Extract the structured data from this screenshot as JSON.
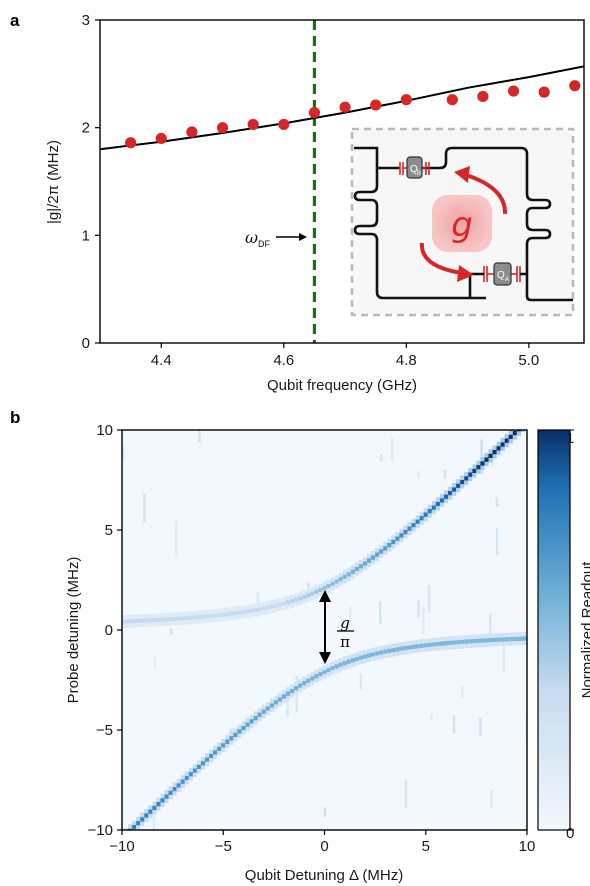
{
  "panel_a_label": "a",
  "panel_b_label": "b",
  "chart_data": [
    {
      "type": "scatter",
      "panel": "a",
      "xlabel": "Qubit frequency (GHz)",
      "ylabel": "|g|/2π (MHz)",
      "xlim": [
        4.3,
        5.09
      ],
      "ylim": [
        0,
        3
      ],
      "xticks": [
        4.4,
        4.6,
        4.8,
        5.0
      ],
      "xtick_labels": [
        "4.4",
        "4.6",
        "4.8",
        "5.0"
      ],
      "yticks": [
        0,
        1,
        2,
        3
      ],
      "ytick_labels": [
        "0",
        "1",
        "2",
        "3"
      ],
      "points_color": "#d62728",
      "fit_color": "#000000",
      "marker_line_color": "#1e6b1e",
      "series": [
        {
          "kind": "points",
          "x": [
            4.35,
            4.4,
            4.45,
            4.5,
            4.55,
            4.6,
            4.65,
            4.7,
            4.75,
            4.8,
            4.875,
            4.925,
            4.975,
            5.025,
            5.075
          ],
          "y": [
            1.86,
            1.9,
            1.96,
            2.0,
            2.03,
            2.03,
            2.14,
            2.19,
            2.21,
            2.26,
            2.26,
            2.29,
            2.34,
            2.33,
            2.39
          ]
        },
        {
          "kind": "line",
          "x": [
            4.3,
            4.4,
            4.5,
            4.6,
            4.7,
            4.8,
            4.9,
            5.0,
            5.09
          ],
          "y": [
            1.8,
            1.87,
            1.95,
            2.04,
            2.14,
            2.25,
            2.37,
            2.47,
            2.57
          ]
        }
      ],
      "vline": {
        "x": 4.65,
        "style": "dashed"
      },
      "annotation": {
        "text": "ω",
        "subscript": "DF"
      },
      "inset": {
        "center_label": "g",
        "qubit_label_top": "Q",
        "qubit_sub_top": "B",
        "qubit_label_bottom": "Q",
        "qubit_sub_bottom": "A"
      }
    },
    {
      "type": "heatmap",
      "panel": "b",
      "xlabel": "Qubit Detuning Δ (MHz)",
      "ylabel": "Probe detuning (MHz)",
      "xlim": [
        -10,
        10
      ],
      "ylim": [
        -10,
        10
      ],
      "xticks": [
        -10,
        -5,
        0,
        5,
        10
      ],
      "xtick_labels": [
        "−10",
        "−5",
        "0",
        "5",
        "10"
      ],
      "yticks": [
        -10,
        -5,
        0,
        5,
        10
      ],
      "ytick_labels": [
        "−10",
        "−5",
        "0",
        "5",
        "10"
      ],
      "colorbar": {
        "label": "Normalized Readout",
        "min": 0,
        "max": 1,
        "tick_labels": [
          "0",
          "1"
        ],
        "low_color": "#f2f8fd",
        "high_color": "#08306b"
      },
      "branches": {
        "coupling_g_over_pi_MHz": 4.2,
        "offset_MHz": 0
      },
      "annotation": {
        "numerator": "g",
        "denominator": "π"
      }
    }
  ]
}
